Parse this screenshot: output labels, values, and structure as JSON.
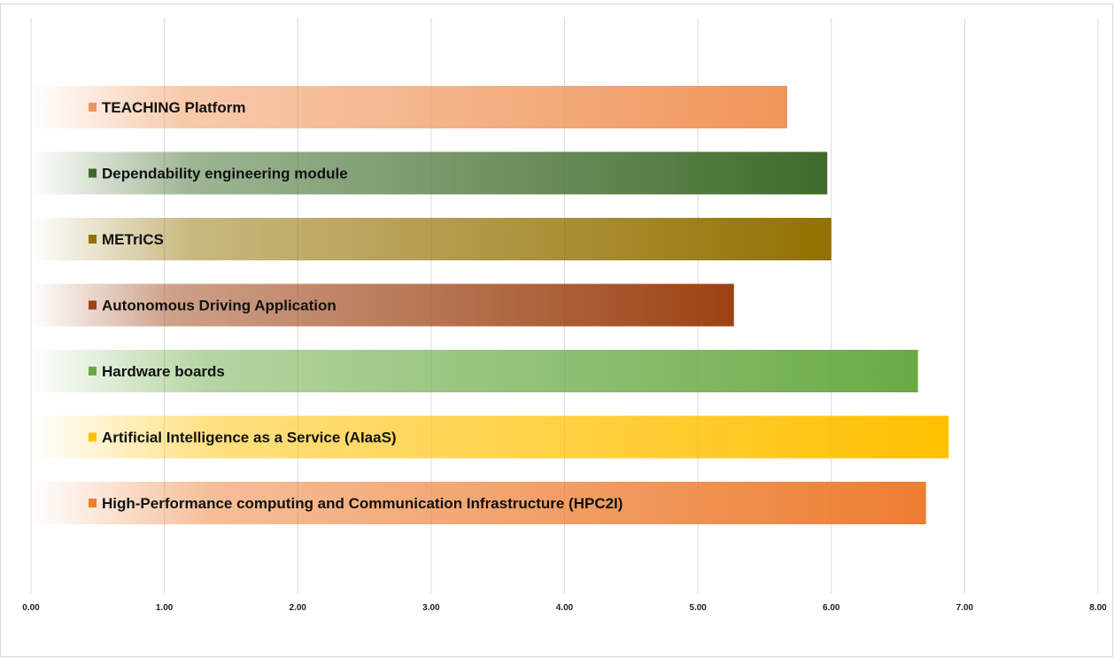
{
  "chart_data": {
    "type": "bar",
    "orientation": "horizontal",
    "title": "",
    "xlabel": "",
    "ylabel": "",
    "xlim": [
      0,
      8
    ],
    "x_ticks": [
      "0.00",
      "1.00",
      "2.00",
      "3.00",
      "4.00",
      "5.00",
      "6.00",
      "7.00",
      "8.00"
    ],
    "grid": "vertical",
    "legend": "none",
    "bars": [
      {
        "label": "TEACHING Platform",
        "value": 5.67,
        "color": "#f0955a"
      },
      {
        "label": "Dependability engineering module",
        "value": 5.97,
        "color": "#3e6b2a"
      },
      {
        "label": "METrICS",
        "value": 6.0,
        "color": "#937100"
      },
      {
        "label": "Autonomous Driving Application",
        "value": 5.27,
        "color": "#9c4213"
      },
      {
        "label": "Hardware boards",
        "value": 6.65,
        "color": "#6aaa45"
      },
      {
        "label": "Artificial Intelligence as a Service (AIaaS)",
        "value": 6.88,
        "color": "#ffc000"
      },
      {
        "label": "High-Performance computing and Communication Infrastructure (HPC2I)",
        "value": 6.71,
        "color": "#ed7d31"
      }
    ]
  }
}
